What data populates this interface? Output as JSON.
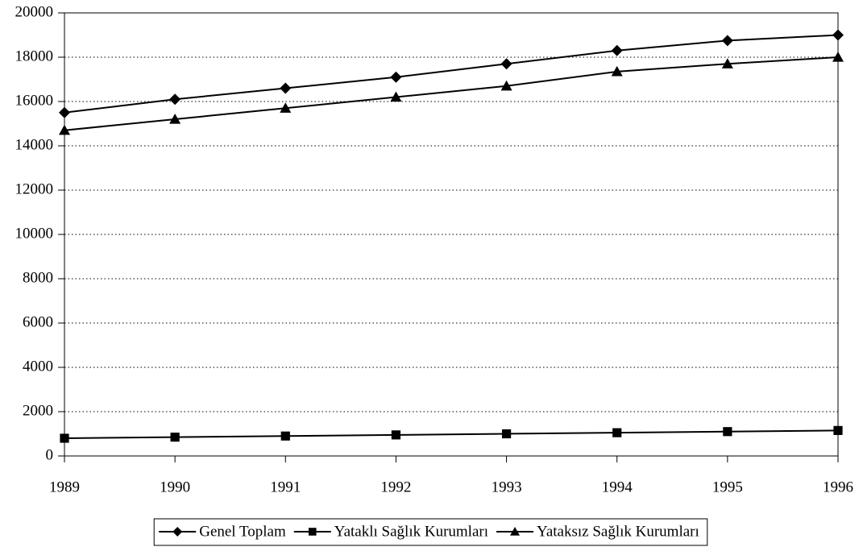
{
  "chart_data": {
    "type": "line",
    "categories": [
      "1989",
      "1990",
      "1991",
      "1992",
      "1993",
      "1994",
      "1995",
      "1996"
    ],
    "series": [
      {
        "name": "Genel Toplam",
        "color": "#000000",
        "marker": "diamond",
        "values": [
          15500,
          16100,
          16600,
          17100,
          17700,
          18300,
          18750,
          19000
        ]
      },
      {
        "name": "Yataklı Sağlık Kurumları",
        "color": "#000000",
        "marker": "square",
        "values": [
          800,
          850,
          900,
          950,
          1000,
          1050,
          1100,
          1150
        ]
      },
      {
        "name": "Yataksız Sağlık Kurumları",
        "color": "#000000",
        "marker": "triangle",
        "values": [
          14700,
          15200,
          15700,
          16200,
          16700,
          17350,
          17700,
          18000
        ]
      }
    ],
    "ylim": [
      0,
      20000
    ],
    "yticks": [
      0,
      2000,
      4000,
      6000,
      8000,
      10000,
      12000,
      14000,
      16000,
      18000,
      20000
    ],
    "grid": true,
    "legend": "bottom"
  }
}
